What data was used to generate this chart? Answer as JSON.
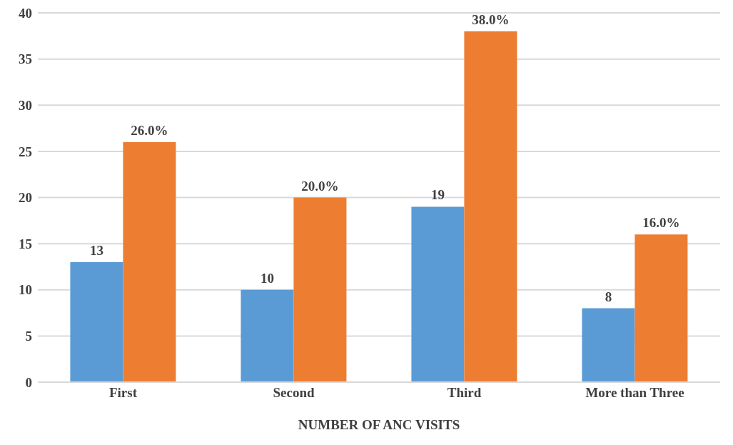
{
  "chart_data": {
    "type": "bar",
    "xlabel": "NUMBER OF ANC VISITS",
    "categories": [
      "First",
      "Second",
      "Third",
      "More than Three"
    ],
    "series": [
      {
        "color": "#5b9bd5",
        "values": [
          13,
          10,
          19,
          8
        ],
        "value_labels": [
          "13",
          "10",
          "19",
          "8"
        ]
      },
      {
        "color": "#ed7d31",
        "values": [
          26,
          20,
          38,
          16
        ],
        "value_labels": [
          "26.0%",
          "20.0%",
          "38.0%",
          "16.0%"
        ]
      }
    ],
    "ylim": [
      0,
      40
    ],
    "yticks": [
      0,
      5,
      10,
      15,
      20,
      25,
      30,
      35,
      40
    ],
    "grid": "y",
    "legend": false
  }
}
